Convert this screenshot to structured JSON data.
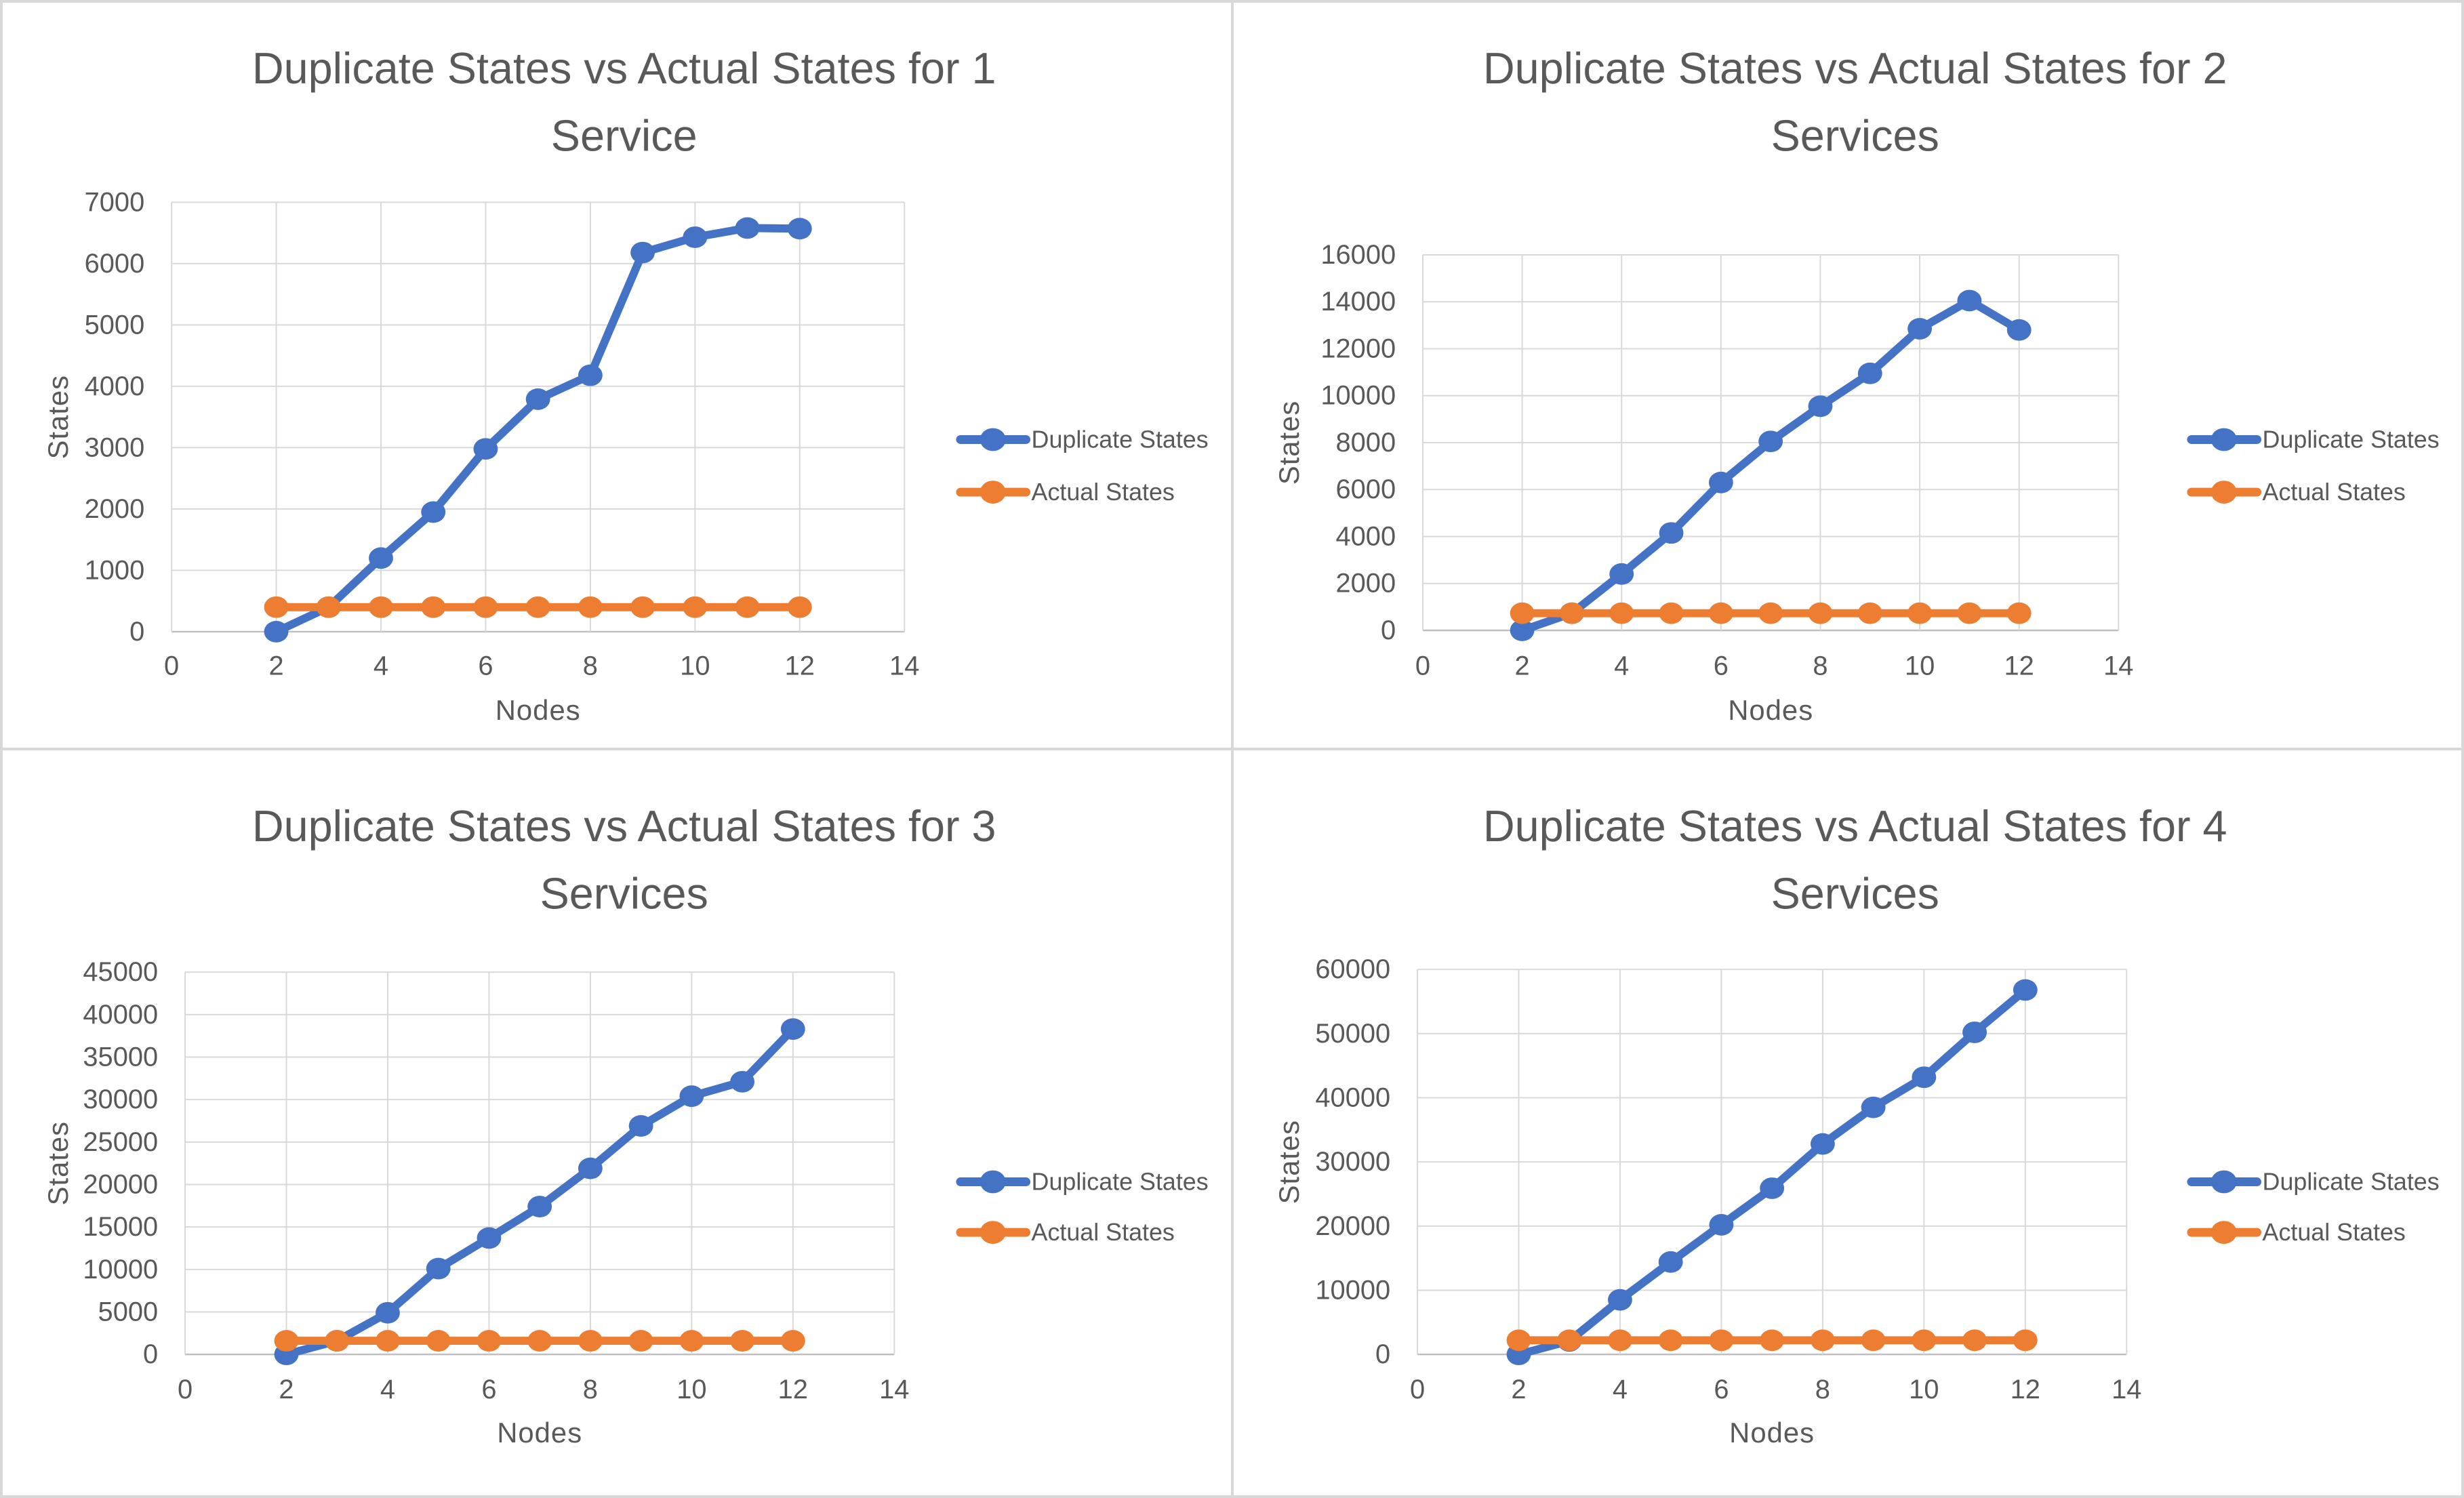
{
  "page": {
    "kind": "excel-chart-grid",
    "background": "#ffffff",
    "divider_color": "#d8d8d8"
  },
  "colors": {
    "duplicate_series": "#4472C4",
    "actual_series": "#ED7D31",
    "gridline": "#D9D9D9",
    "axis_line": "#BFBFBF",
    "text": "#595959"
  },
  "legend_labels": [
    "Duplicate States",
    "Actual States"
  ],
  "chart_data": [
    {
      "type": "line",
      "title": "Duplicate States vs Actual States for 1 Service",
      "title_lines": [
        "Duplicate States vs Actual States for 1",
        "Service"
      ],
      "xlabel": "Nodes",
      "ylabel": "States",
      "xlim": [
        0,
        14
      ],
      "ylim": [
        0,
        7000
      ],
      "xticks": [
        0,
        2,
        4,
        6,
        8,
        10,
        12,
        14
      ],
      "yticks": [
        0,
        1000,
        2000,
        3000,
        4000,
        5000,
        6000,
        7000
      ],
      "grid": true,
      "legend_position": "right",
      "x": [
        2,
        3,
        4,
        5,
        6,
        7,
        8,
        9,
        10,
        11,
        12
      ],
      "series": [
        {
          "name": "Duplicate States",
          "color": "#4472C4",
          "values": [
            0,
            400,
            1200,
            1950,
            2980,
            3790,
            4180,
            6180,
            6430,
            6580,
            6570
          ]
        },
        {
          "name": "Actual States",
          "color": "#ED7D31",
          "values": [
            400,
            400,
            400,
            400,
            400,
            400,
            400,
            400,
            400,
            400,
            400
          ]
        }
      ]
    },
    {
      "type": "line",
      "title": "Duplicate States vs Actual States for 2 Services",
      "title_lines": [
        "Duplicate States vs Actual States for 2",
        "Services"
      ],
      "xlabel": "Nodes",
      "ylabel": "States",
      "xlim": [
        0,
        14
      ],
      "ylim": [
        0,
        16000
      ],
      "xticks": [
        0,
        2,
        4,
        6,
        8,
        10,
        12,
        14
      ],
      "yticks": [
        0,
        2000,
        4000,
        6000,
        8000,
        10000,
        12000,
        14000,
        16000
      ],
      "grid": true,
      "legend_position": "right",
      "x": [
        2,
        3,
        4,
        5,
        6,
        7,
        8,
        9,
        10,
        11,
        12
      ],
      "series": [
        {
          "name": "Duplicate States",
          "color": "#4472C4",
          "values": [
            0,
            730,
            2400,
            4150,
            6300,
            8050,
            9550,
            10950,
            12850,
            14050,
            12800
          ]
        },
        {
          "name": "Actual States",
          "color": "#ED7D31",
          "values": [
            730,
            730,
            730,
            730,
            730,
            730,
            730,
            730,
            730,
            730,
            730
          ]
        }
      ]
    },
    {
      "type": "line",
      "title": "Duplicate States vs Actual States for 3 Services",
      "title_lines": [
        "Duplicate States vs Actual States for 3",
        "Services"
      ],
      "xlabel": "Nodes",
      "ylabel": "States",
      "xlim": [
        0,
        14
      ],
      "ylim": [
        0,
        45000
      ],
      "xticks": [
        0,
        2,
        4,
        6,
        8,
        10,
        12,
        14
      ],
      "yticks": [
        0,
        5000,
        10000,
        15000,
        20000,
        25000,
        30000,
        35000,
        40000,
        45000
      ],
      "grid": true,
      "legend_position": "right",
      "x": [
        2,
        3,
        4,
        5,
        6,
        7,
        8,
        9,
        10,
        11,
        12
      ],
      "series": [
        {
          "name": "Duplicate States",
          "color": "#4472C4",
          "values": [
            0,
            1600,
            4900,
            10100,
            13700,
            17400,
            21900,
            26900,
            30400,
            32100,
            38300
          ]
        },
        {
          "name": "Actual States",
          "color": "#ED7D31",
          "values": [
            1600,
            1600,
            1600,
            1600,
            1600,
            1600,
            1600,
            1600,
            1600,
            1600,
            1600
          ]
        }
      ]
    },
    {
      "type": "line",
      "title": "Duplicate States vs Actual States for 4 Services",
      "title_lines": [
        "Duplicate States vs Actual States for 4",
        "Services"
      ],
      "xlabel": "Nodes",
      "ylabel": "States",
      "xlim": [
        0,
        14
      ],
      "ylim": [
        0,
        60000
      ],
      "xticks": [
        0,
        2,
        4,
        6,
        8,
        10,
        12,
        14
      ],
      "yticks": [
        0,
        10000,
        20000,
        30000,
        40000,
        50000,
        60000
      ],
      "grid": true,
      "legend_position": "right",
      "x": [
        2,
        3,
        4,
        5,
        6,
        7,
        8,
        9,
        10,
        11,
        12
      ],
      "series": [
        {
          "name": "Duplicate States",
          "color": "#4472C4",
          "values": [
            0,
            2100,
            8500,
            14400,
            20200,
            25900,
            32800,
            38500,
            43200,
            50200,
            56800
          ]
        },
        {
          "name": "Actual States",
          "color": "#ED7D31",
          "values": [
            2200,
            2200,
            2200,
            2200,
            2200,
            2200,
            2200,
            2200,
            2200,
            2200,
            2200
          ]
        }
      ]
    }
  ]
}
